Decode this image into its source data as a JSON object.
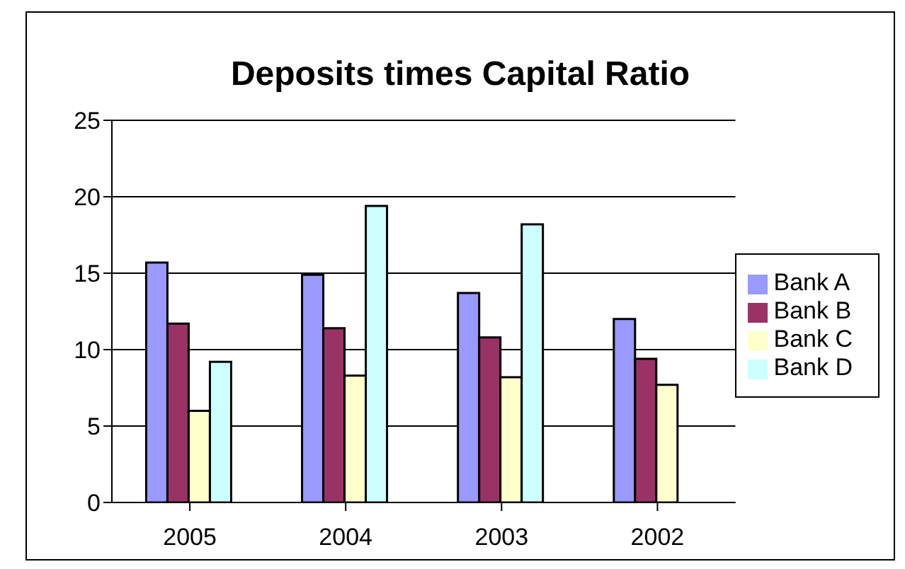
{
  "chart_data": {
    "type": "bar",
    "title": "Deposits times Capital Ratio",
    "categories": [
      "2005",
      "2004",
      "2003",
      "2002"
    ],
    "series": [
      {
        "name": "Bank A",
        "color": "#9999ff",
        "values": [
          15.7,
          14.9,
          13.7,
          12.0
        ]
      },
      {
        "name": "Bank B",
        "color": "#993366",
        "values": [
          11.7,
          11.4,
          10.8,
          9.4
        ]
      },
      {
        "name": "Bank C",
        "color": "#ffffcc",
        "values": [
          6.0,
          8.3,
          8.2,
          7.7
        ]
      },
      {
        "name": "Bank D",
        "color": "#ccffff",
        "values": [
          9.2,
          19.4,
          18.2,
          null
        ]
      }
    ],
    "ylim": [
      0,
      25
    ],
    "yticks": [
      0,
      5,
      10,
      15,
      20,
      25
    ],
    "grid": "y",
    "legend": "right"
  }
}
